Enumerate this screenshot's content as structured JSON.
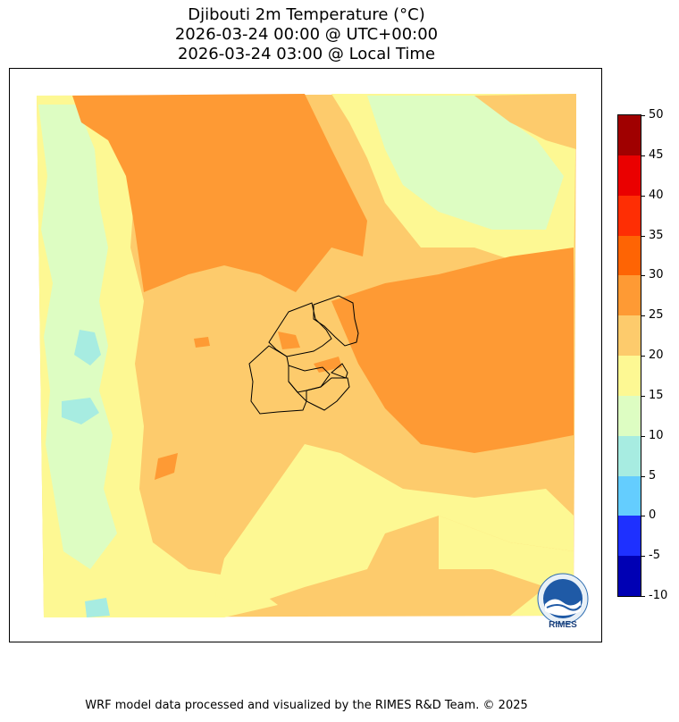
{
  "title": {
    "line1": "Djibouti 2m Temperature (°C)",
    "line2": "2026-03-24 00:00 @ UTC+00:00",
    "line3": "2026-03-24 03:00 @ Local Time"
  },
  "colorbar": {
    "levels": [
      {
        "min": -10,
        "max": -5,
        "color": "#0000b4"
      },
      {
        "min": -5,
        "max": 0,
        "color": "#1e30ff"
      },
      {
        "min": 0,
        "max": 5,
        "color": "#64cdfe"
      },
      {
        "min": 5,
        "max": 10,
        "color": "#a7ece1"
      },
      {
        "min": 10,
        "max": 15,
        "color": "#ddfdc2"
      },
      {
        "min": 15,
        "max": 20,
        "color": "#fdf893"
      },
      {
        "min": 20,
        "max": 25,
        "color": "#fdcb6c"
      },
      {
        "min": 25,
        "max": 30,
        "color": "#fe9a34"
      },
      {
        "min": 30,
        "max": 35,
        "color": "#fe6404"
      },
      {
        "min": 35,
        "max": 40,
        "color": "#fe2e04"
      },
      {
        "min": 40,
        "max": 45,
        "color": "#ea0000"
      },
      {
        "min": 45,
        "max": 50,
        "color": "#a00000"
      }
    ],
    "tick_labels": [
      "50",
      "45",
      "40",
      "35",
      "30",
      "25",
      "20",
      "15",
      "10",
      "5",
      "0",
      "-5",
      "-10"
    ]
  },
  "logo": {
    "text": "RIMES",
    "icon": "rimes-logo-icon"
  },
  "footer": "WRF model data processed and visualized by the RIMES R&D Team. © 2025"
}
